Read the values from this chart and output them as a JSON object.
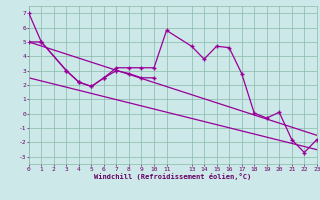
{
  "xlabel": "Windchill (Refroidissement éolien,°C)",
  "bg_color": "#cce8e8",
  "line_color": "#990099",
  "xlim": [
    0,
    23
  ],
  "ylim": [
    -3.5,
    7.5
  ],
  "xtick_labels": [
    "0",
    "1",
    "2",
    "3",
    "4",
    "5",
    "6",
    "7",
    "8",
    "9",
    "10",
    "11",
    "13",
    "14",
    "15",
    "16",
    "17",
    "18",
    "19",
    "20",
    "21",
    "22",
    "23"
  ],
  "xtick_vals": [
    0,
    1,
    2,
    3,
    4,
    5,
    6,
    7,
    8,
    9,
    10,
    11,
    13,
    14,
    15,
    16,
    17,
    18,
    19,
    20,
    21,
    22,
    23
  ],
  "ytick_vals": [
    -3,
    -2,
    -1,
    0,
    1,
    2,
    3,
    4,
    5,
    6,
    7
  ],
  "jagged1_x": [
    0,
    1,
    3,
    4,
    5,
    6,
    7,
    8,
    9,
    10,
    11,
    13,
    14,
    15,
    16,
    17,
    18,
    19,
    20,
    21,
    22,
    23
  ],
  "jagged1_y": [
    7.0,
    5.0,
    3.0,
    2.2,
    1.9,
    2.5,
    3.2,
    3.2,
    3.2,
    3.2,
    5.8,
    4.7,
    3.8,
    4.7,
    4.6,
    2.8,
    0.05,
    -0.3,
    0.1,
    -1.8,
    -2.7,
    -1.8
  ],
  "jagged2_x": [
    0,
    1,
    3,
    4,
    5,
    6,
    7,
    8,
    9,
    10
  ],
  "jagged2_y": [
    5.0,
    5.0,
    3.0,
    2.2,
    1.9,
    2.5,
    3.0,
    2.8,
    2.5,
    2.5
  ],
  "trend1_x": [
    0,
    23
  ],
  "trend1_y": [
    5.0,
    -1.5
  ],
  "trend2_x": [
    0,
    23
  ],
  "trend2_y": [
    2.5,
    -2.5
  ]
}
